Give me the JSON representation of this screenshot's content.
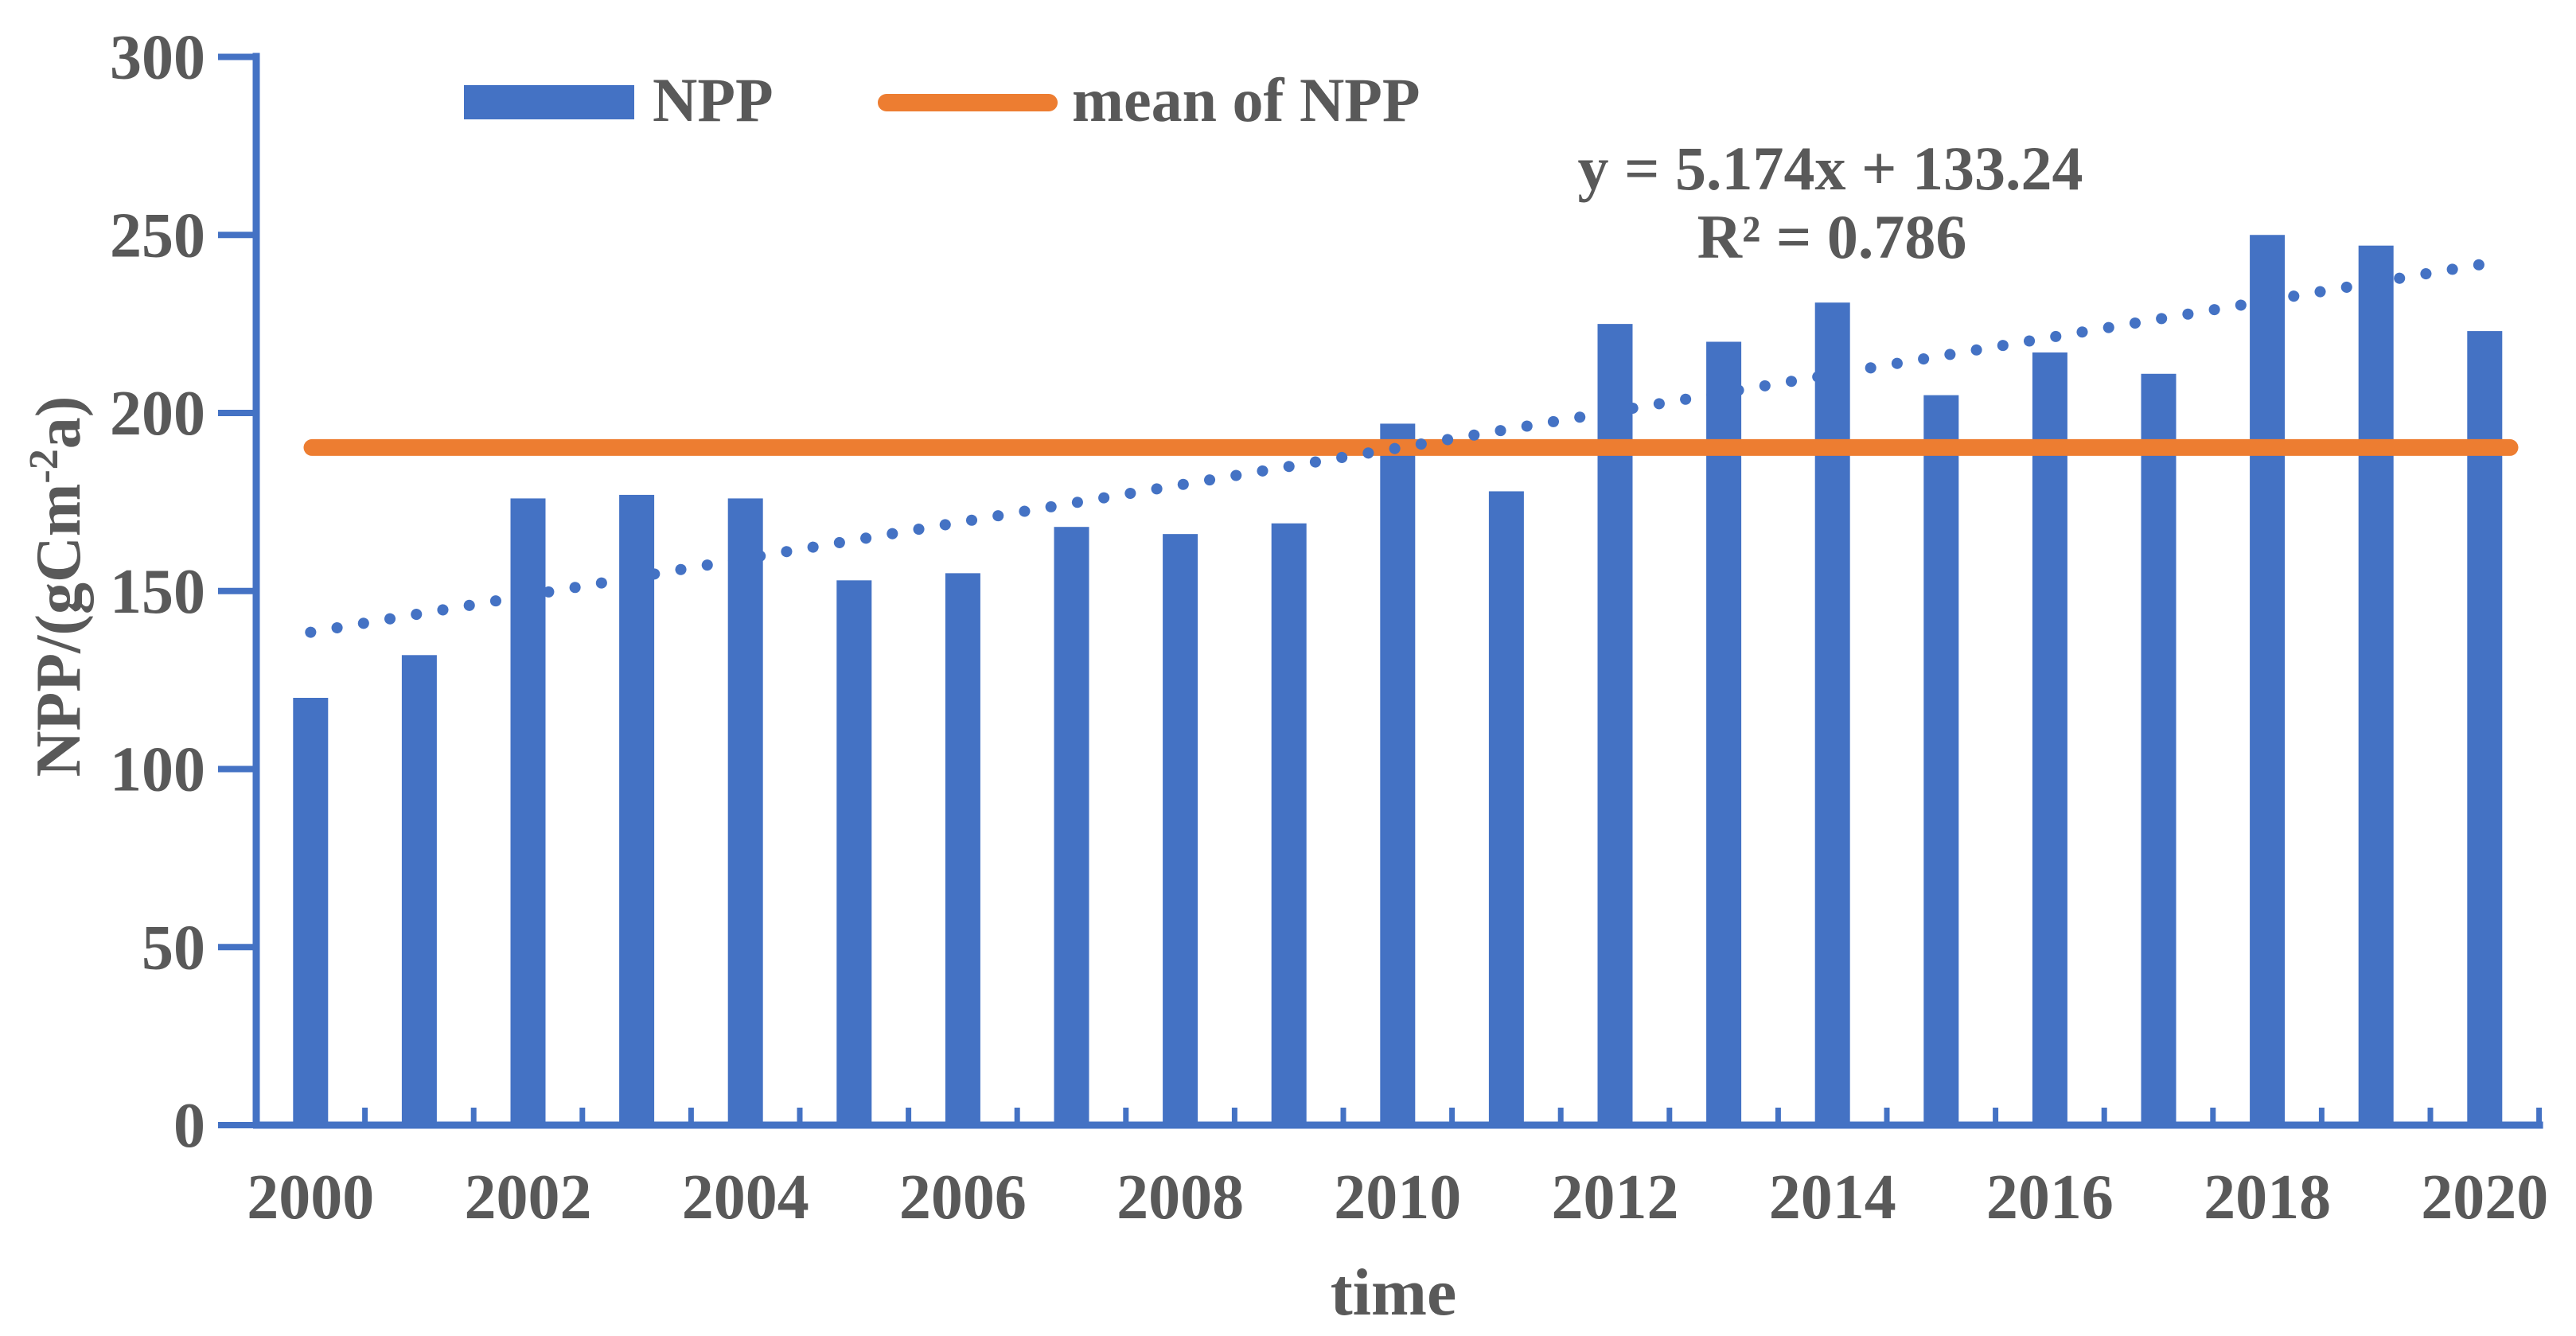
{
  "chart_data": {
    "type": "bar",
    "xlabel": "time",
    "ylabel_parts": {
      "main": "NPP/(gCm",
      "sup": "-2",
      "tail": "a)"
    },
    "categories": [
      2000,
      2001,
      2002,
      2003,
      2004,
      2005,
      2006,
      2007,
      2008,
      2009,
      2010,
      2011,
      2012,
      2013,
      2014,
      2015,
      2016,
      2017,
      2018,
      2019,
      2020
    ],
    "values": [
      120,
      132,
      176,
      177,
      176,
      153,
      155,
      168,
      166,
      169,
      197,
      178,
      225,
      220,
      231,
      205,
      217,
      211,
      250,
      247,
      223
    ],
    "x_tick_labels": [
      "2000",
      "2002",
      "2004",
      "2006",
      "2008",
      "2010",
      "2012",
      "2014",
      "2016",
      "2018",
      "2020"
    ],
    "y_ticks": [
      0,
      50,
      100,
      150,
      200,
      250,
      300
    ],
    "ylim": [
      0,
      300
    ],
    "grid": false,
    "legend_position": "top-left-inside",
    "mean_value": 190.3,
    "series": [
      {
        "name": "NPP",
        "type": "bar",
        "color": "#4472C4"
      },
      {
        "name": "mean of NPP",
        "type": "line",
        "color": "#ED7D31",
        "value": 190.3
      }
    ],
    "trendline": {
      "equation": "y = 5.174x + 133.24",
      "r_squared": "R² = 0.786",
      "slope": 5.174,
      "intercept": 133.24,
      "style": "dotted",
      "color": "#4472C4"
    },
    "legend": [
      {
        "label": "NPP",
        "swatch": "bar-swatch",
        "color": "#4472C4"
      },
      {
        "label": "mean of NPP",
        "swatch": "line-swatch",
        "color": "#ED7D31"
      }
    ],
    "colors": {
      "bar": "#4472C4",
      "mean_line": "#ED7D31",
      "trend_dots": "#4472C4",
      "axis": "#4472C4",
      "text": "#595959"
    }
  }
}
